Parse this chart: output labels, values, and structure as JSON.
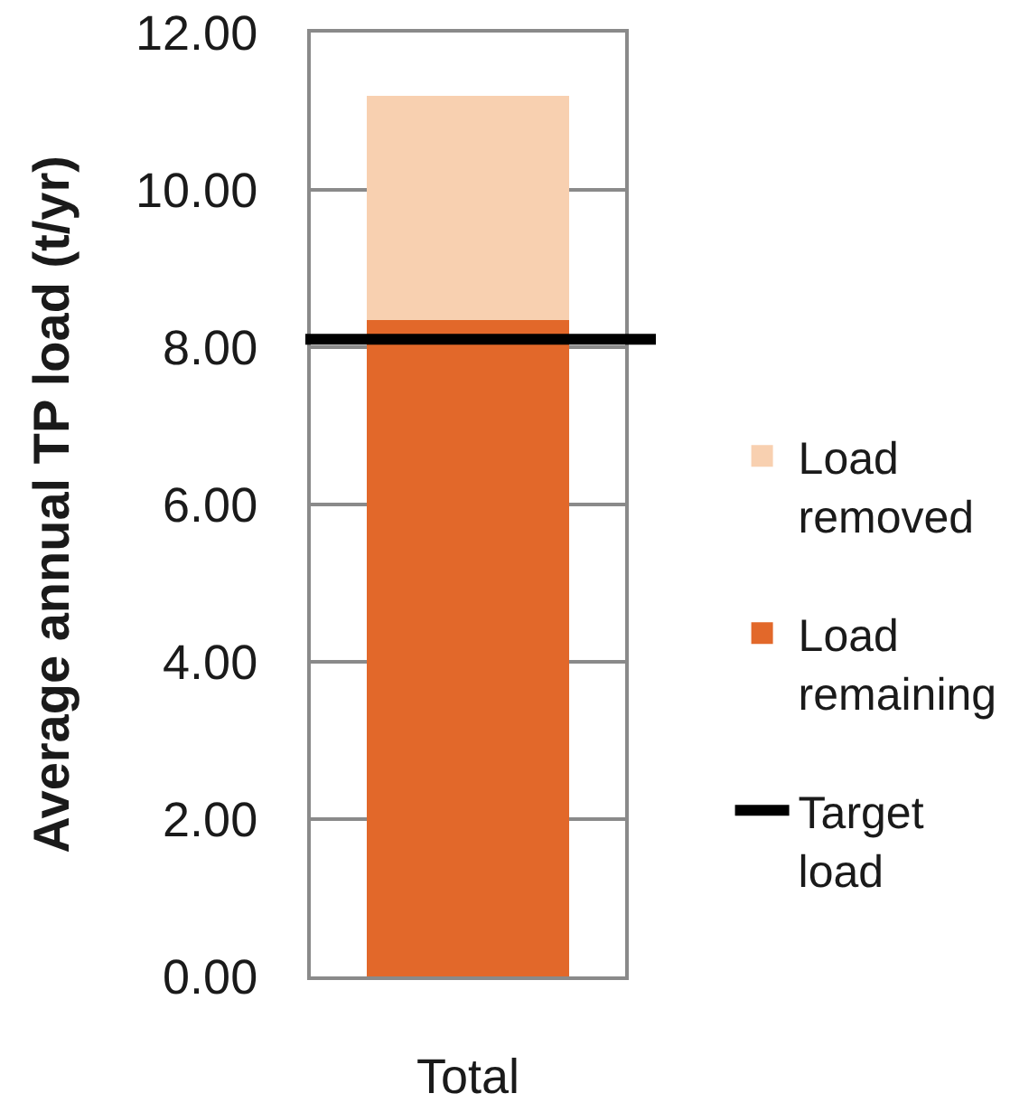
{
  "chart_data": {
    "type": "bar",
    "stacked": true,
    "ylabel": "Average annual TP load (t/yr)",
    "categories": [
      "Total"
    ],
    "series": [
      {
        "name": "Load remaining",
        "color": "#e2682a",
        "values": [
          8.35
        ]
      },
      {
        "name": "Load removed",
        "color": "#f8d0b0",
        "values": [
          2.85
        ]
      }
    ],
    "ylim": [
      0,
      12
    ],
    "yticks": [
      {
        "value": 0,
        "label": "0.00"
      },
      {
        "value": 2,
        "label": "2.00"
      },
      {
        "value": 4,
        "label": "4.00"
      },
      {
        "value": 6,
        "label": "6.00"
      },
      {
        "value": 8,
        "label": "8.00"
      },
      {
        "value": 10,
        "label": "10.00"
      },
      {
        "value": 12,
        "label": "12.00"
      }
    ],
    "ref_lines": [
      {
        "axis": "y",
        "value": 8.1,
        "label": "Target load",
        "color": "#000000"
      }
    ],
    "grid": "y",
    "legend": "right"
  }
}
